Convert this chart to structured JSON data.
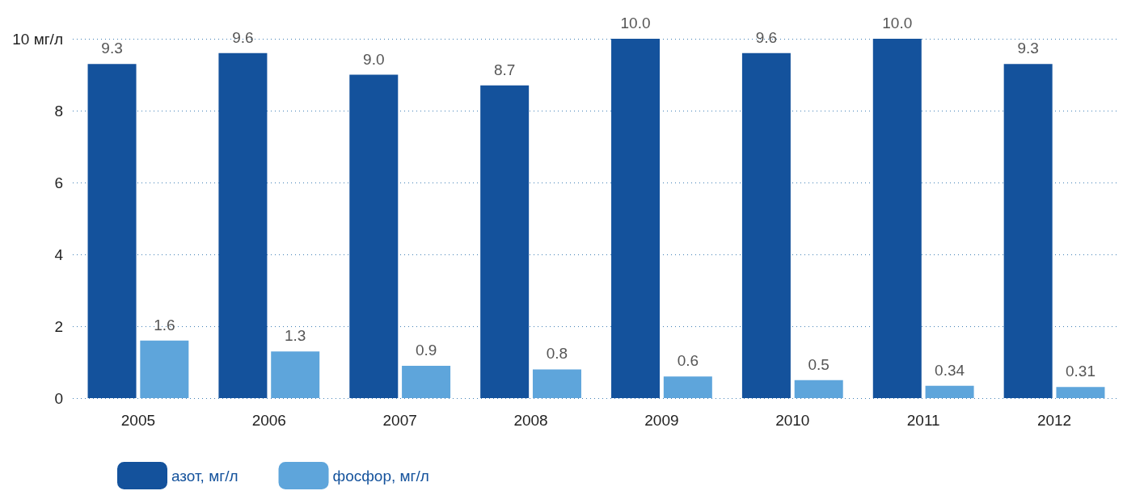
{
  "chart_data": {
    "type": "bar",
    "categories": [
      "2005",
      "2006",
      "2007",
      "2008",
      "2009",
      "2010",
      "2011",
      "2012"
    ],
    "series": [
      {
        "name": "азот, мг/л",
        "color": "#14529c",
        "values": [
          9.3,
          9.6,
          9.0,
          8.7,
          10.0,
          9.6,
          10.0,
          9.3
        ],
        "value_labels": [
          "9.3",
          "9.6",
          "9.0",
          "8.7",
          "10.0",
          "9.6",
          "10.0",
          "9.3"
        ]
      },
      {
        "name": "фосфор, мг/л",
        "color": "#5ea5db",
        "values": [
          1.6,
          1.3,
          0.9,
          0.8,
          0.6,
          0.5,
          0.34,
          0.31
        ],
        "value_labels": [
          "1.6",
          "1.3",
          "0.9",
          "0.8",
          "0.6",
          "0.5",
          "0.34",
          "0.31"
        ]
      }
    ],
    "ylim": [
      0,
      10
    ],
    "yticks": [
      0,
      2,
      4,
      6,
      8,
      {
        "value": 10,
        "label": "10 мг/л"
      }
    ],
    "grid": "y",
    "legend": "bottom left"
  }
}
